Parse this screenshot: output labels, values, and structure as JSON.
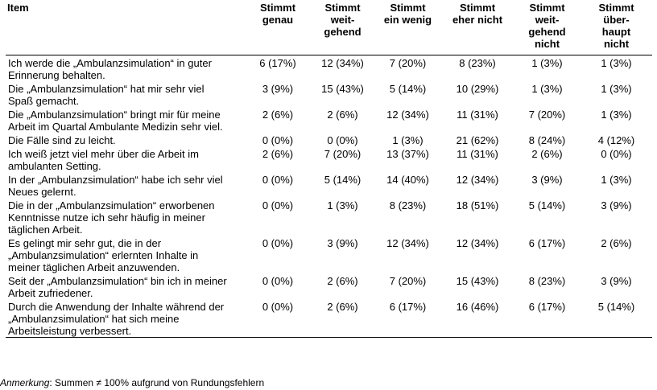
{
  "table": {
    "headers": [
      "Item",
      "Stimmt\ngenau",
      "Stimmt\nweit-\ngehend",
      "Stimmt\nein wenig",
      "Stimmt\neher nicht",
      "Stimmt\nweit-\ngehend\nnicht",
      "Stimmt\nüber-\nhaupt\nnicht"
    ],
    "rows": [
      {
        "item": "Ich werde die „Ambulanzsimulation“ in guter Erinnerung behalten.",
        "values": [
          "6 (17%)",
          "12 (34%)",
          "7 (20%)",
          "8 (23%)",
          "1 (3%)",
          "1 (3%)"
        ]
      },
      {
        "item": "Die „Ambulanzsimulation“ hat mir sehr viel Spaß gemacht.",
        "values": [
          "3 (9%)",
          "15 (43%)",
          "5 (14%)",
          "10 (29%)",
          "1 (3%)",
          "1 (3%)"
        ]
      },
      {
        "item": "Die „Ambulanzsimulation“ bringt mir für meine Arbeit im Quartal Ambulante Medizin sehr viel.",
        "values": [
          "2 (6%)",
          "2 (6%)",
          "12 (34%)",
          "11 (31%)",
          "7 (20%)",
          "1 (3%)"
        ]
      },
      {
        "item": "Die Fälle sind zu leicht.",
        "values": [
          "0 (0%)",
          "0 (0%)",
          "1 (3%)",
          "21 (62%)",
          "8 (24%)",
          "4 (12%)"
        ]
      },
      {
        "item": "Ich weiß jetzt viel mehr über die Arbeit im ambulanten Setting.",
        "values": [
          "2 (6%)",
          "7 (20%)",
          "13 (37%)",
          "11 (31%)",
          "2 (6%)",
          "0 (0%)"
        ]
      },
      {
        "item": "In der „Ambulanzsimulation“ habe ich sehr viel Neues gelernt.",
        "values": [
          "0 (0%)",
          "5 (14%)",
          "14 (40%)",
          "12 (34%)",
          "3 (9%)",
          "1 (3%)"
        ]
      },
      {
        "item": "Die in der „Ambulanzsimulation“ erworbenen Kenntnisse nutze ich sehr häufig in meiner täglichen Arbeit.",
        "values": [
          "0 (0%)",
          "1 (3%)",
          "8 (23%)",
          "18 (51%)",
          "5 (14%)",
          "3 (9%)"
        ]
      },
      {
        "item": "Es gelingt mir sehr gut, die in der „Ambulanzsimulation“ erlernten Inhalte in meiner täglichen Arbeit anzuwenden.",
        "values": [
          "0 (0%)",
          "3 (9%)",
          "12 (34%)",
          "12 (34%)",
          "6 (17%)",
          "2 (6%)"
        ]
      },
      {
        "item": "Seit der „Ambulanzsimulation“ bin ich in meiner Arbeit zufriedener.",
        "values": [
          "0 (0%)",
          "2 (6%)",
          "7 (20%)",
          "15 (43%)",
          "8 (23%)",
          "3 (9%)"
        ]
      },
      {
        "item": "Durch die Anwendung der Inhalte während der „Ambulanzsimulation“ hat sich meine Arbeitsleistung verbessert.",
        "values": [
          "0 (0%)",
          "2 (6%)",
          "6 (17%)",
          "16 (46%)",
          "6 (17%)",
          "5 (14%)"
        ]
      }
    ]
  },
  "note": {
    "label": "Anmerkung",
    "text": ": Summen ≠ 100% aufgrund von Rundungsfehlern"
  }
}
